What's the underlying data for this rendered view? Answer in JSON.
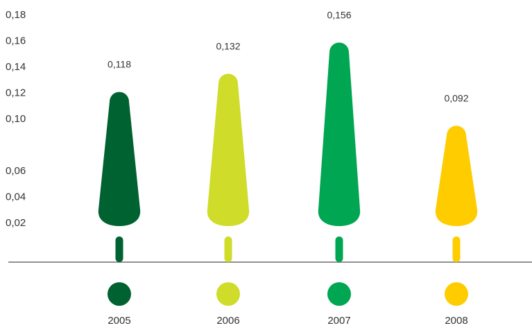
{
  "chart_data": {
    "type": "bar",
    "title": "",
    "xlabel": "",
    "ylabel": "",
    "categories": [
      "2005",
      "2006",
      "2007",
      "2008"
    ],
    "values": [
      0.118,
      0.132,
      0.156,
      0.092
    ],
    "value_labels": [
      "0,118",
      "0,132",
      "0,156",
      "0,092"
    ],
    "y_ticks": [
      {
        "label": "0,02",
        "value": 0.02
      },
      {
        "label": "0,04",
        "value": 0.04
      },
      {
        "label": "0,06",
        "value": 0.06
      },
      {
        "label": "0,10",
        "value": 0.1
      },
      {
        "label": "0,12",
        "value": 0.12
      },
      {
        "label": "0,14",
        "value": 0.14
      },
      {
        "label": "0,16",
        "value": 0.16
      },
      {
        "label": "0,18",
        "value": 0.18
      }
    ],
    "colors": [
      "#006230",
      "#cfdc2a",
      "#00a651",
      "#ffcc00"
    ],
    "axis_color": "#6d6d6d",
    "grid": false,
    "legend": "none"
  }
}
